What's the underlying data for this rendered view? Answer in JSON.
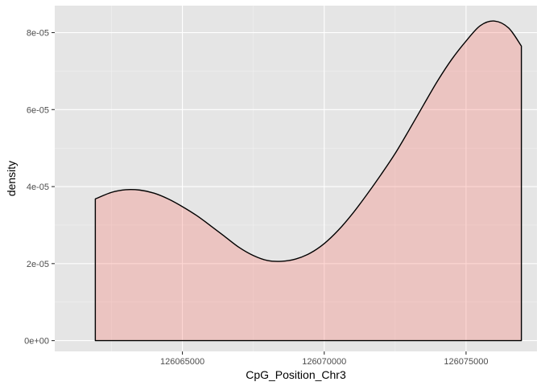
{
  "chart_data": {
    "type": "area",
    "xlabel": "CpG_Position_Chr3",
    "ylabel": "density",
    "xlim": [
      126060500,
      126077500
    ],
    "ylim": [
      -2.8e-06,
      8.7e-05
    ],
    "x_ticks": [
      {
        "value": 126065000,
        "label": "126065000"
      },
      {
        "value": 126070000,
        "label": "126070000"
      },
      {
        "value": 126075000,
        "label": "126075000"
      }
    ],
    "y_ticks": [
      {
        "value": 0,
        "label": "0e+00"
      },
      {
        "value": 2e-05,
        "label": "2e-05"
      },
      {
        "value": 4e-05,
        "label": "4e-05"
      },
      {
        "value": 6e-05,
        "label": "6e-05"
      },
      {
        "value": 8e-05,
        "label": "8e-05"
      }
    ],
    "grid": true,
    "series": [
      {
        "x": [
          126061930,
          126062500,
          126063000,
          126063500,
          126064000,
          126064500,
          126065000,
          126065500,
          126066000,
          126066500,
          126067000,
          126067500,
          126068000,
          126068500,
          126069000,
          126069500,
          126070000,
          126070500,
          126071000,
          126071500,
          126072000,
          126072500,
          126073000,
          126073500,
          126074000,
          126074500,
          126075000,
          126075500,
          126076000,
          126076500,
          126076950
        ],
        "y": [
          3.68e-05,
          3.85e-05,
          3.92e-05,
          3.91e-05,
          3.83e-05,
          3.68e-05,
          3.48e-05,
          3.25e-05,
          2.98e-05,
          2.7e-05,
          2.42e-05,
          2.21e-05,
          2.08e-05,
          2.06e-05,
          2.12e-05,
          2.27e-05,
          2.52e-05,
          2.87e-05,
          3.3e-05,
          3.79e-05,
          4.31e-05,
          4.86e-05,
          5.48e-05,
          6.12e-05,
          6.75e-05,
          7.31e-05,
          7.78e-05,
          8.18e-05,
          8.3e-05,
          8.12e-05,
          7.65e-05
        ]
      }
    ],
    "colors": {
      "fill": "#f8766d",
      "fill_opacity": 0.3,
      "outline": "#000000",
      "panel_background": "#e5e5e5",
      "grid_major": "#ffffff",
      "grid_minor": "#f2f2f2",
      "tick_label": "#4d4d4d"
    }
  }
}
